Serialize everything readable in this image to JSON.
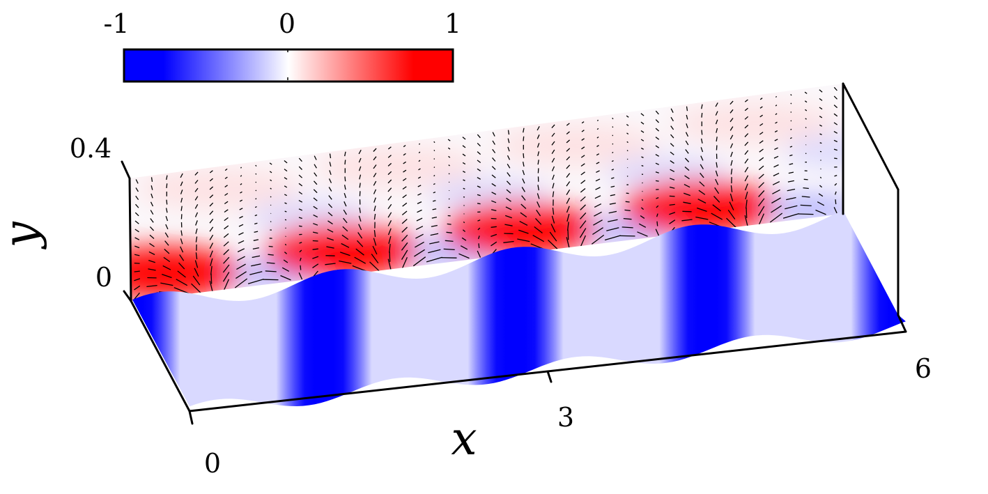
{
  "chart_data": {
    "type": "heatmap",
    "description_kind": "3d-field-visualization",
    "colormap": {
      "min_label": "-1",
      "mid_label": "0",
      "max_label": "1",
      "range": [
        -1,
        1
      ],
      "colors": [
        "#0000ff",
        "#ffffff",
        "#ff0000"
      ]
    },
    "x_axis": {
      "label": "x",
      "ticks": [
        "0",
        "3",
        "6"
      ],
      "range": [
        0,
        6
      ]
    },
    "y_axis": {
      "label": "y",
      "ticks": [
        "0",
        "0.4"
      ],
      "range": [
        0,
        0.4
      ]
    },
    "surface_wave": {
      "num_periods": 4,
      "amplitude_sign_pattern": "cosine"
    }
  }
}
